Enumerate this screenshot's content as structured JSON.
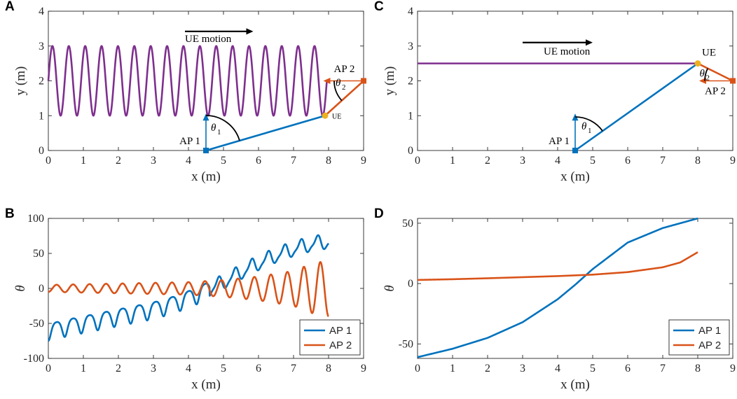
{
  "colors": {
    "ap1": "#0072BD",
    "ap2": "#D95319",
    "traj": "#7E2F8E",
    "ue": "#EDB120",
    "black": "#000000"
  },
  "chart_data": [
    {
      "id": "A",
      "type": "line",
      "letter": "A",
      "xlabel": "x (m)",
      "ylabel": "y (m)",
      "xlim": [
        0,
        9
      ],
      "ylim": [
        0,
        4
      ],
      "xticks": [
        0,
        1,
        2,
        3,
        4,
        5,
        6,
        7,
        8,
        9
      ],
      "yticks": [
        0,
        1,
        2,
        3,
        4
      ],
      "trajectory": {
        "name": "UE trajectory",
        "center": 2,
        "amplitude": 1,
        "cycles": 17,
        "x_range": [
          0,
          7.95
        ]
      },
      "ap1": {
        "x": 4.5,
        "y": 0,
        "label": "AP 1",
        "theta_label": "θ",
        "theta_sub": "1"
      },
      "ap2": {
        "x": 9,
        "y": 2,
        "label": "AP 2",
        "theta_label": "θ",
        "theta_sub": "2"
      },
      "ue": {
        "x": 7.9,
        "y": 1,
        "label": "UE"
      },
      "motion_label": "UE motion"
    },
    {
      "id": "B",
      "type": "line",
      "letter": "B",
      "xlabel": "x (m)",
      "ylabel": "θ",
      "xlim": [
        0,
        9
      ],
      "ylim": [
        -100,
        100
      ],
      "xticks": [
        0,
        1,
        2,
        3,
        4,
        5,
        6,
        7,
        8,
        9
      ],
      "yticks": [
        -100,
        -50,
        0,
        50,
        100
      ],
      "series": [
        {
          "name": "AP 1",
          "color": "#0072BD",
          "x": [
            0,
            0.5,
            1,
            1.5,
            2,
            2.5,
            3,
            3.5,
            4,
            4.5,
            5,
            5.5,
            6,
            6.5,
            7,
            7.5,
            8
          ],
          "values": [
            -63,
            -57,
            -52,
            -47,
            -42,
            -37,
            -32,
            -25,
            -16,
            -5,
            8,
            22,
            35,
            46,
            55,
            62,
            66
          ],
          "ripple_amplitude": 12
        },
        {
          "name": "AP 2",
          "color": "#D95319",
          "x": [
            0,
            1,
            2,
            3,
            4,
            5,
            6,
            7,
            7.5,
            8
          ],
          "values": [
            0,
            0,
            0,
            0,
            0,
            0,
            0,
            0,
            0,
            0
          ],
          "ripple_amplitude": [
            5,
            6,
            7,
            8,
            9,
            12,
            17,
            25,
            35,
            40
          ]
        }
      ],
      "legend": "bottom-right"
    },
    {
      "id": "C",
      "type": "line",
      "letter": "C",
      "xlabel": "x (m)",
      "ylabel": "y (m)",
      "xlim": [
        0,
        9
      ],
      "ylim": [
        0,
        4
      ],
      "xticks": [
        0,
        1,
        2,
        3,
        4,
        5,
        6,
        7,
        8,
        9
      ],
      "yticks": [
        0,
        1,
        2,
        3,
        4
      ],
      "trajectory": {
        "name": "UE trajectory",
        "y": 2.5,
        "x_range": [
          0,
          8
        ]
      },
      "ap1": {
        "x": 4.5,
        "y": 0,
        "label": "AP 1",
        "theta_label": "θ",
        "theta_sub": "1"
      },
      "ap2": {
        "x": 9,
        "y": 2,
        "label": "AP 2",
        "theta_label": "θ",
        "theta_sub": "2"
      },
      "ue": {
        "x": 8,
        "y": 2.5,
        "label": "UE"
      },
      "motion_label": "UE motion"
    },
    {
      "id": "D",
      "type": "line",
      "letter": "D",
      "xlabel": "x (m)",
      "ylabel": "θ",
      "xlim": [
        0,
        9
      ],
      "ylim": [
        -62,
        54
      ],
      "xticks": [
        0,
        1,
        2,
        3,
        4,
        5,
        6,
        7,
        8,
        9
      ],
      "yticks": [
        -50,
        0,
        50
      ],
      "series": [
        {
          "name": "AP 1",
          "color": "#0072BD",
          "x": [
            0,
            1,
            2,
            3,
            4,
            4.5,
            5,
            6,
            7,
            8
          ],
          "values": [
            -61,
            -54,
            -45,
            -32,
            -13,
            -1,
            12,
            34,
            46,
            54
          ]
        },
        {
          "name": "AP 2",
          "color": "#D95319",
          "x": [
            0,
            1,
            2,
            3,
            4,
            5,
            6,
            7,
            7.5,
            8
          ],
          "values": [
            3,
            3.6,
            4.4,
            5.3,
            6.2,
            7.4,
            9.5,
            13.5,
            17.5,
            26
          ]
        }
      ],
      "legend": "bottom-right"
    }
  ]
}
